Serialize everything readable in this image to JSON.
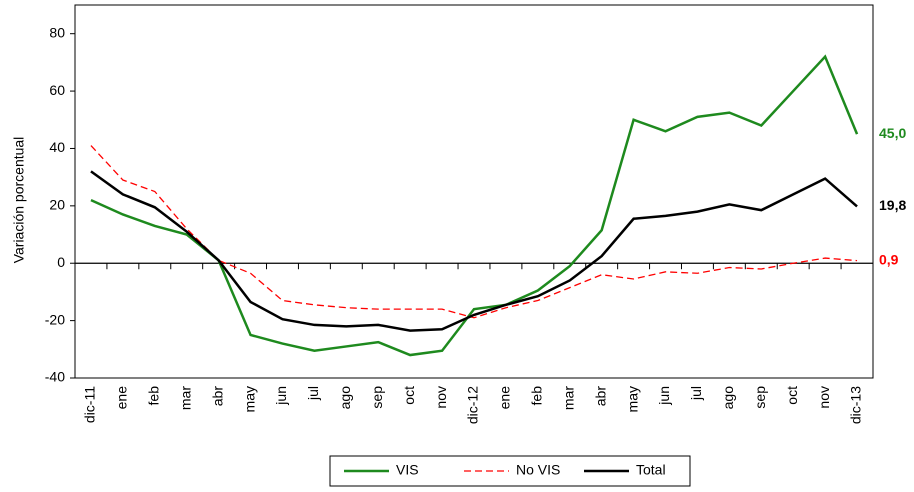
{
  "chart_data": {
    "type": "line",
    "y_label": "Variación porcentual",
    "categories": [
      "dic-11",
      "ene",
      "feb",
      "mar",
      "abr",
      "may",
      "jun",
      "jul",
      "ago",
      "sep",
      "oct",
      "nov",
      "dic-12",
      "ene",
      "feb",
      "mar",
      "abr",
      "may",
      "jun",
      "jul",
      "ago",
      "sep",
      "oct",
      "nov",
      "dic-13"
    ],
    "series": [
      {
        "name": "VIS",
        "color": "#1e8a1e",
        "style": "solid",
        "values": [
          22,
          17,
          13,
          10,
          1,
          -25,
          -28,
          -30.5,
          -29,
          -27.5,
          -32,
          -30.5,
          -16,
          -14.5,
          -9.5,
          -1,
          11.5,
          50,
          46,
          51,
          52.5,
          48,
          60,
          72,
          45
        ],
        "value_labels": [
          null,
          null,
          null,
          null,
          null,
          null,
          null,
          null,
          null,
          null,
          null,
          null,
          null,
          null,
          null,
          null,
          null,
          null,
          null,
          null,
          null,
          null,
          null,
          null,
          "45,0"
        ]
      },
      {
        "name": "No VIS",
        "color": "#ff0000",
        "style": "dashed",
        "values": [
          41,
          29,
          25,
          12,
          1,
          -3.5,
          -13,
          -14.5,
          -15.5,
          -16,
          -16,
          -16,
          -19,
          -15.5,
          -13,
          -8.5,
          -4,
          -5.5,
          -3,
          -3.5,
          -1.5,
          -2,
          0,
          1.8,
          0.9
        ],
        "value_labels": [
          null,
          null,
          null,
          null,
          null,
          null,
          null,
          null,
          null,
          null,
          null,
          null,
          null,
          null,
          null,
          null,
          null,
          null,
          null,
          null,
          null,
          null,
          null,
          null,
          "0,9"
        ]
      },
      {
        "name": "Total",
        "color": "#000000",
        "style": "solid",
        "values": [
          32,
          24,
          19.5,
          11,
          1,
          -13.5,
          -19.5,
          -21.5,
          -22,
          -21.5,
          -23.5,
          -23,
          -18,
          -14.5,
          -11.5,
          -6,
          2.5,
          15.5,
          16.5,
          18,
          20.5,
          18.5,
          24,
          29.5,
          19.8
        ],
        "value_labels": [
          null,
          null,
          null,
          null,
          null,
          null,
          null,
          null,
          null,
          null,
          null,
          null,
          null,
          null,
          null,
          null,
          null,
          null,
          null,
          null,
          null,
          null,
          null,
          null,
          "19,8"
        ]
      }
    ],
    "ylim": [
      -40,
      90
    ],
    "yticks": [
      -40,
      -20,
      0,
      20,
      40,
      60,
      80
    ],
    "legend": "bottom"
  }
}
